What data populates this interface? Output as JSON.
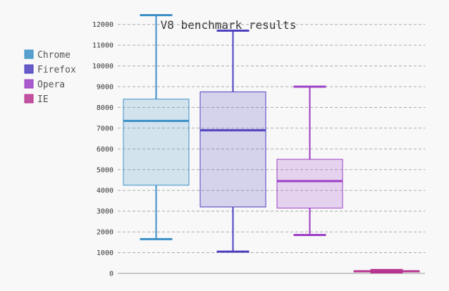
{
  "chart_data": {
    "type": "box",
    "title": "V8 benchmark results",
    "xlabel": "",
    "ylabel": "",
    "ylim": [
      0,
      12500
    ],
    "yticks": [
      0,
      1000,
      2000,
      3000,
      4000,
      5000,
      6000,
      7000,
      8000,
      9000,
      10000,
      11000,
      12000
    ],
    "grid": true,
    "legend_position": "left",
    "series": [
      {
        "name": "Chrome",
        "color": "#3a8fc7",
        "whisker_low": 1650,
        "q1": 4250,
        "median": 7350,
        "q3": 8400,
        "whisker_high": 12450
      },
      {
        "name": "Firefox",
        "color": "#4d3fbf",
        "whisker_low": 1050,
        "q1": 3200,
        "median": 6900,
        "q3": 8750,
        "whisker_high": 11700
      },
      {
        "name": "Opera",
        "color": "#9b3ec6",
        "whisker_low": 1850,
        "q1": 3150,
        "median": 4450,
        "q3": 5500,
        "whisker_high": 9000
      },
      {
        "name": "IE",
        "color": "#b8358f",
        "whisker_low": 50,
        "q1": 70,
        "median": 100,
        "q3": 120,
        "whisker_high": 160
      }
    ]
  }
}
